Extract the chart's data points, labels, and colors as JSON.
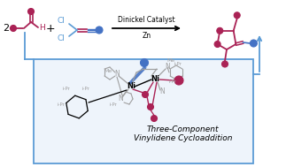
{
  "bg_color": "#ffffff",
  "crimson": "#aa2255",
  "blue": "#4472c4",
  "steel_blue": "#5b9bd5",
  "gray_line": "#a0a0a0",
  "box_edge": "#5b9bd5",
  "box_fill": "#eef4fb",
  "title_line1": "Three-Component",
  "title_line2": "Vinylidene Cycloaddition",
  "arrow_text1": "Dinickel Catalyst",
  "arrow_text2": "Zn",
  "figsize": [
    3.23,
    1.89
  ],
  "dpi": 100
}
